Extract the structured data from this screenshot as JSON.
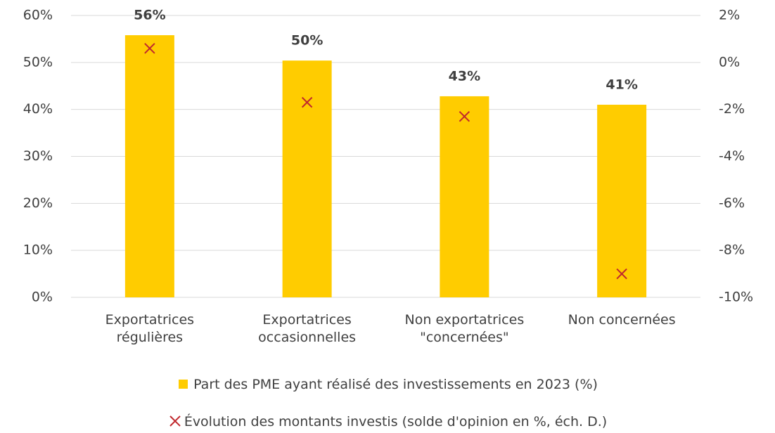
{
  "chart_data": {
    "type": "bar",
    "categories": [
      "Exportatrices\nrégulières",
      "Exportatrices\noccasionnelles",
      "Non exportatrices\n\"concernées\"",
      "Non concernées"
    ],
    "series": [
      {
        "name": "Part des PME ayant réalisé des investissements en 2023 (%)",
        "type": "bar",
        "color": "#ffcc00",
        "values": [
          55.8,
          50.4,
          42.8,
          41.0
        ],
        "value_labels": [
          "56%",
          "50%",
          "43%",
          "41%"
        ]
      },
      {
        "name": "Évolution des montants investis (solde d'opinion en %, éch. D.)",
        "type": "scatter",
        "axis": "y2",
        "color": "#c0282d",
        "values": [
          0.6,
          -1.7,
          -2.3,
          -9.0
        ]
      }
    ],
    "ylim": [
      0,
      60
    ],
    "yticks": [
      {
        "value": 0,
        "label": "0%"
      },
      {
        "value": 10,
        "label": "10%"
      },
      {
        "value": 20,
        "label": "20%"
      },
      {
        "value": 30,
        "label": "30%"
      },
      {
        "value": 40,
        "label": "40%"
      },
      {
        "value": 50,
        "label": "50%"
      },
      {
        "value": 60,
        "label": "60%"
      }
    ],
    "y2lim": [
      -10,
      2
    ],
    "y2ticks": [
      {
        "value": -10,
        "label": "-10%"
      },
      {
        "value": -8,
        "label": "-8%"
      },
      {
        "value": -6,
        "label": "-6%"
      },
      {
        "value": -4,
        "label": "-4%"
      },
      {
        "value": -2,
        "label": "-2%"
      },
      {
        "value": 0,
        "label": "0%"
      },
      {
        "value": 2,
        "label": "2%"
      }
    ],
    "grid": true,
    "legend": "bottom"
  }
}
